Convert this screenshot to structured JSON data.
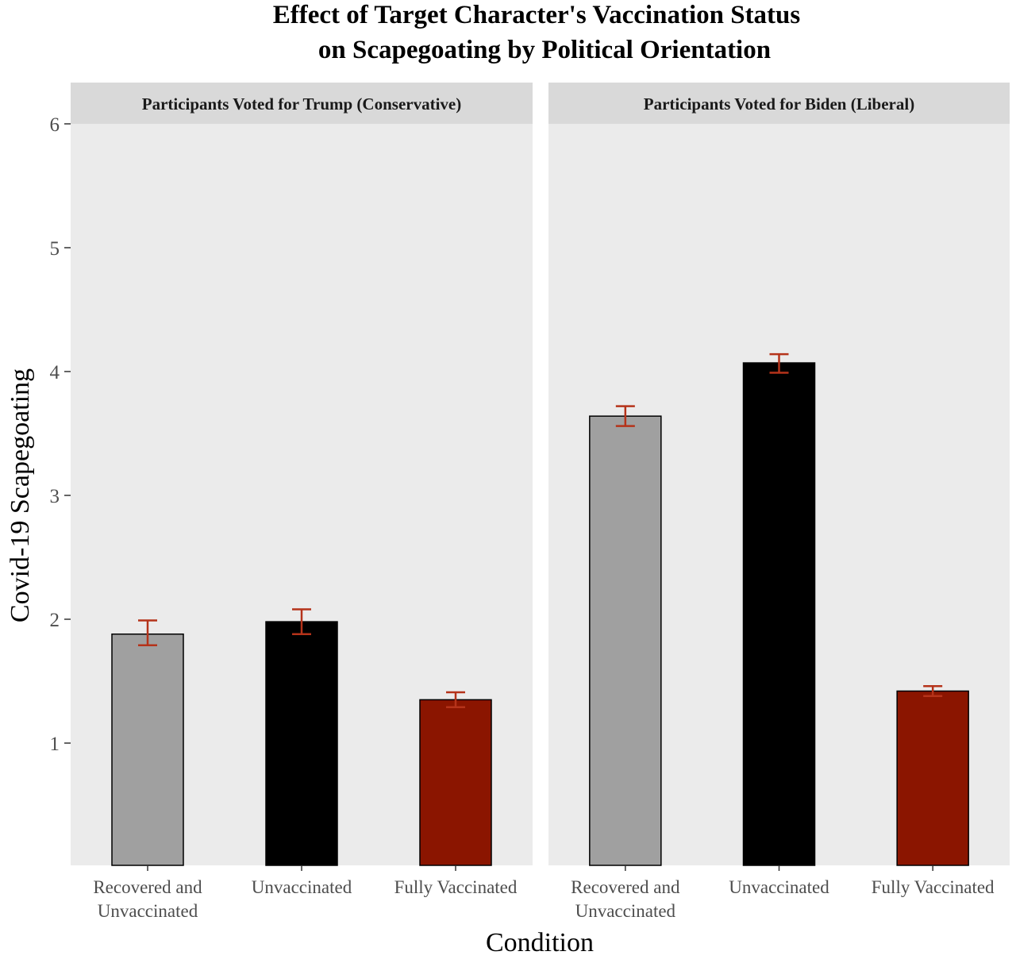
{
  "chart_data": {
    "type": "bar",
    "title_lines": [
      "Effect of Target Character's Vaccination Status",
      "on Scapegoating by Political Orientation"
    ],
    "xlabel": "Condition",
    "ylabel": "Covid-19 Scapegoating",
    "ylim": [
      0,
      6
    ],
    "yticks": [
      1,
      2,
      3,
      4,
      5,
      6
    ],
    "grid": false,
    "legend": "none",
    "categories": [
      {
        "lines": [
          "Recovered and",
          "Unvaccinated"
        ],
        "color": "#a0a0a0"
      },
      {
        "lines": [
          "Unvaccinated"
        ],
        "color": "#000000"
      },
      {
        "lines": [
          "Fully Vaccinated"
        ],
        "color": "#8b1500"
      }
    ],
    "error_bar_color": "#b5331a",
    "panel_background": "#ebebeb",
    "strip_background": "#d9d9d9",
    "facets": [
      {
        "label": "Participants Voted for Trump (Conservative)",
        "values": [
          1.88,
          1.98,
          1.35
        ],
        "err_low": [
          1.79,
          1.88,
          1.29
        ],
        "err_high": [
          1.99,
          2.08,
          1.41
        ]
      },
      {
        "label": "Participants Voted for Biden (Liberal)",
        "values": [
          3.64,
          4.07,
          1.42
        ],
        "err_low": [
          3.56,
          3.99,
          1.38
        ],
        "err_high": [
          3.72,
          4.14,
          1.46
        ]
      }
    ]
  }
}
